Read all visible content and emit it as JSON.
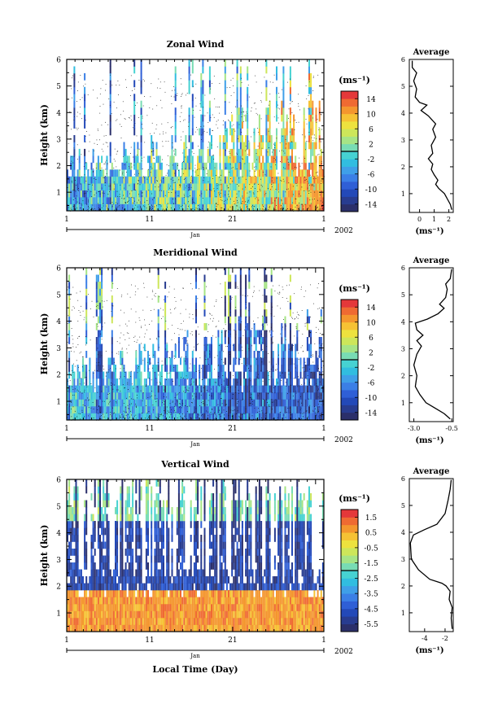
{
  "chart_data": [
    {
      "type": "heatmap",
      "title": "Zonal Wind",
      "ylabel": "Height (km)",
      "ylim": [
        0.3,
        6.0
      ],
      "yticks": [
        "1",
        "2",
        "3",
        "4",
        "5",
        "6"
      ],
      "xlim": [
        1,
        32
      ],
      "xticks": [
        "1",
        "11",
        "21",
        "1"
      ],
      "month": "Jan",
      "year": "2002",
      "colorbar": {
        "unit": "(ms⁻¹)",
        "ticks": [
          "14",
          "10",
          "6",
          "2",
          "-2",
          "-6",
          "-10",
          "-14"
        ],
        "range": [
          -16,
          16
        ],
        "colors": [
          "#2b2f6a",
          "#283c90",
          "#2349b8",
          "#2f5fd6",
          "#3b7fe6",
          "#3f9fe8",
          "#31bde0",
          "#46d2d2",
          "#78dcb4",
          "#a6e486",
          "#cde65a",
          "#ede23e",
          "#f6c234",
          "#f4962e",
          "#ef6a32",
          "#e4383a"
        ]
      },
      "average_panel": {
        "title": "Average",
        "xlabel": "(ms⁻¹)",
        "xticks": [
          "0",
          "1",
          "2"
        ],
        "xlim": [
          -0.7,
          2.3
        ],
        "yticks": [
          "1",
          "2",
          "3",
          "4",
          "5",
          "6"
        ],
        "profile": [
          [
            2.2,
            0.4
          ],
          [
            2.1,
            0.6
          ],
          [
            1.9,
            0.8
          ],
          [
            1.7,
            1.0
          ],
          [
            1.3,
            1.2
          ],
          [
            1.1,
            1.35
          ],
          [
            1.25,
            1.5
          ],
          [
            1.0,
            1.7
          ],
          [
            0.8,
            1.9
          ],
          [
            0.9,
            2.1
          ],
          [
            0.6,
            2.3
          ],
          [
            0.9,
            2.5
          ],
          [
            0.8,
            2.8
          ],
          [
            1.1,
            3.1
          ],
          [
            0.9,
            3.4
          ],
          [
            1.1,
            3.6
          ],
          [
            0.6,
            3.9
          ],
          [
            0.1,
            4.1
          ],
          [
            0.5,
            4.3
          ],
          [
            0.0,
            4.4
          ],
          [
            -0.3,
            4.6
          ],
          [
            -0.2,
            4.9
          ],
          [
            -0.4,
            5.2
          ],
          [
            -0.2,
            5.5
          ],
          [
            -0.5,
            5.7
          ],
          [
            -0.5,
            5.95
          ]
        ]
      }
    },
    {
      "type": "heatmap",
      "title": "Meridional Wind",
      "ylabel": "Height (km)",
      "ylim": [
        0.3,
        6.0
      ],
      "yticks": [
        "1",
        "2",
        "3",
        "4",
        "5",
        "6"
      ],
      "xlim": [
        1,
        32
      ],
      "xticks": [
        "1",
        "11",
        "21",
        "1"
      ],
      "month": "Jan",
      "year": "2002",
      "colorbar": {
        "unit": "(ms⁻¹)",
        "ticks": [
          "14",
          "10",
          "6",
          "2",
          "-2",
          "-6",
          "-10",
          "-14"
        ],
        "range": [
          -16,
          16
        ],
        "colors": [
          "#2b2f6a",
          "#283c90",
          "#2349b8",
          "#2f5fd6",
          "#3b7fe6",
          "#3f9fe8",
          "#31bde0",
          "#46d2d2",
          "#78dcb4",
          "#a6e486",
          "#cde65a",
          "#ede23e",
          "#f6c234",
          "#f4962e",
          "#ef6a32",
          "#e4383a"
        ]
      },
      "average_panel": {
        "title": "Average",
        "xlabel": "(ms⁻¹)",
        "xticks": [
          "-3.0",
          "-0.5"
        ],
        "xlim": [
          -3.3,
          -0.4
        ],
        "yticks": [
          "1",
          "2",
          "3",
          "4",
          "5",
          "6"
        ],
        "profile": [
          [
            -0.6,
            0.4
          ],
          [
            -1.0,
            0.6
          ],
          [
            -1.6,
            0.8
          ],
          [
            -2.2,
            1.0
          ],
          [
            -2.6,
            1.3
          ],
          [
            -2.9,
            1.6
          ],
          [
            -2.8,
            2.0
          ],
          [
            -3.0,
            2.4
          ],
          [
            -2.8,
            2.8
          ],
          [
            -2.5,
            3.1
          ],
          [
            -2.8,
            3.3
          ],
          [
            -2.4,
            3.5
          ],
          [
            -2.8,
            3.7
          ],
          [
            -2.9,
            3.95
          ],
          [
            -2.1,
            4.1
          ],
          [
            -1.4,
            4.3
          ],
          [
            -1.0,
            4.5
          ],
          [
            -1.3,
            4.65
          ],
          [
            -0.9,
            4.9
          ],
          [
            -0.8,
            5.2
          ],
          [
            -0.9,
            5.4
          ],
          [
            -0.6,
            5.6
          ],
          [
            -0.5,
            5.95
          ]
        ]
      }
    },
    {
      "type": "heatmap",
      "title": "Vertical Wind",
      "ylabel": "Height (km)",
      "xlabel": "Local Time (Day)",
      "ylim": [
        0.3,
        6.0
      ],
      "yticks": [
        "1",
        "2",
        "3",
        "4",
        "5",
        "6"
      ],
      "xlim": [
        1,
        32
      ],
      "xticks": [
        "1",
        "11",
        "21",
        "1"
      ],
      "month": "Jan",
      "year": "2002",
      "colorbar": {
        "unit": "(ms⁻¹)",
        "ticks": [
          "1.5",
          "0.5",
          "-0.5",
          "-1.5",
          "-2.5",
          "-3.5",
          "-4.5",
          "-5.5"
        ],
        "range": [
          -6.0,
          2.0
        ],
        "colors": [
          "#2b2f6a",
          "#283c90",
          "#2349b8",
          "#2f5fd6",
          "#3b7fe6",
          "#3f9fe8",
          "#31bde0",
          "#46d2d2",
          "#78dcb4",
          "#a6e486",
          "#cde65a",
          "#ede23e",
          "#f6c234",
          "#f4962e",
          "#ef6a32",
          "#e4383a"
        ]
      },
      "average_panel": {
        "title": "Average",
        "xlabel": "(ms⁻¹)",
        "xticks": [
          "-4",
          "-2"
        ],
        "xlim": [
          -5.5,
          -1.2
        ],
        "yticks": [
          "1",
          "2",
          "3",
          "4",
          "5",
          "6"
        ],
        "profile": [
          [
            -1.3,
            0.4
          ],
          [
            -1.4,
            0.8
          ],
          [
            -1.3,
            1.2
          ],
          [
            -1.6,
            1.5
          ],
          [
            -1.5,
            1.8
          ],
          [
            -1.9,
            2.0
          ],
          [
            -2.3,
            2.1
          ],
          [
            -3.5,
            2.25
          ],
          [
            -4.6,
            2.6
          ],
          [
            -5.3,
            3.0
          ],
          [
            -5.4,
            3.6
          ],
          [
            -5.1,
            3.9
          ],
          [
            -4.0,
            4.1
          ],
          [
            -2.8,
            4.3
          ],
          [
            -2.0,
            4.7
          ],
          [
            -1.7,
            5.2
          ],
          [
            -1.5,
            5.6
          ],
          [
            -1.4,
            5.95
          ]
        ]
      }
    }
  ]
}
